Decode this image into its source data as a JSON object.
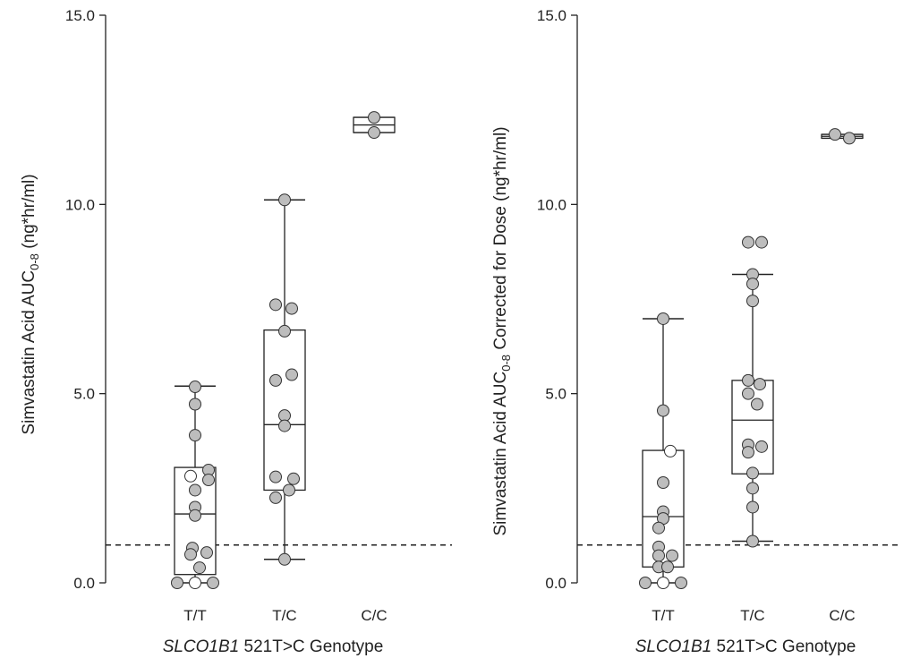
{
  "chart_data": [
    {
      "type": "box",
      "ylabel_main": "Simvastatin Acid AUC",
      "ylabel_sub": "0-8",
      "ylabel_rest": " (ng*hr/ml)",
      "xlabel_italic": "SLCO1B1",
      "xlabel_rest": " 521T>C Genotype",
      "ylim": [
        0,
        15
      ],
      "yticks": [
        "0.0",
        "5.0",
        "10.0",
        "15.0"
      ],
      "categories": [
        "T/T",
        "T/C",
        "C/C"
      ],
      "reference_line": 1.0,
      "boxes": [
        {
          "whisker_low": 0.0,
          "q1": 0.22,
          "median": 1.82,
          "q3": 3.05,
          "whisker_high": 5.2
        },
        {
          "whisker_low": 0.62,
          "q1": 2.45,
          "median": 4.18,
          "q3": 6.68,
          "whisker_high": 10.12
        },
        {
          "whisker_low": 11.9,
          "q1": 11.9,
          "median": 12.1,
          "q3": 12.3,
          "whisker_high": 12.3
        }
      ],
      "points": [
        [
          {
            "y": 5.18,
            "dx": 0.0,
            "open": false
          },
          {
            "y": 4.72,
            "dx": 0.0,
            "open": false
          },
          {
            "y": 3.9,
            "dx": 0.0,
            "open": false
          },
          {
            "y": 2.98,
            "dx": 0.15,
            "open": false
          },
          {
            "y": 2.82,
            "dx": -0.05,
            "open": true
          },
          {
            "y": 2.72,
            "dx": 0.15,
            "open": false
          },
          {
            "y": 2.45,
            "dx": 0.0,
            "open": false
          },
          {
            "y": 2.0,
            "dx": 0.0,
            "open": false
          },
          {
            "y": 1.78,
            "dx": 0.0,
            "open": false
          },
          {
            "y": 0.92,
            "dx": -0.03,
            "open": false
          },
          {
            "y": 0.8,
            "dx": 0.13,
            "open": false
          },
          {
            "y": 0.75,
            "dx": -0.05,
            "open": false
          },
          {
            "y": 0.4,
            "dx": 0.05,
            "open": false
          },
          {
            "y": 0.0,
            "dx": -0.2,
            "open": false
          },
          {
            "y": 0.0,
            "dx": 0.0,
            "open": true
          },
          {
            "y": 0.0,
            "dx": 0.2,
            "open": false
          }
        ],
        [
          {
            "y": 10.12,
            "dx": 0.0,
            "open": false
          },
          {
            "y": 7.35,
            "dx": -0.1,
            "open": false
          },
          {
            "y": 7.25,
            "dx": 0.08,
            "open": false
          },
          {
            "y": 6.65,
            "dx": 0.0,
            "open": false
          },
          {
            "y": 5.5,
            "dx": 0.08,
            "open": false
          },
          {
            "y": 5.35,
            "dx": -0.1,
            "open": false
          },
          {
            "y": 4.42,
            "dx": 0.0,
            "open": false
          },
          {
            "y": 4.15,
            "dx": 0.0,
            "open": false
          },
          {
            "y": 2.8,
            "dx": -0.1,
            "open": false
          },
          {
            "y": 2.75,
            "dx": 0.1,
            "open": false
          },
          {
            "y": 2.45,
            "dx": 0.05,
            "open": false
          },
          {
            "y": 2.25,
            "dx": -0.1,
            "open": false
          },
          {
            "y": 0.62,
            "dx": 0.0,
            "open": false
          }
        ],
        [
          {
            "y": 12.3,
            "dx": 0.0,
            "open": false
          },
          {
            "y": 11.9,
            "dx": 0.0,
            "open": false
          }
        ]
      ]
    },
    {
      "type": "box",
      "ylabel_main": "Simvastatin Acid AUC",
      "ylabel_sub": "0-8",
      "ylabel_rest": " Corrected for Dose (ng*hr/ml)",
      "xlabel_italic": "SLCO1B1",
      "xlabel_rest": " 521T>C Genotype",
      "ylim": [
        0,
        15
      ],
      "yticks": [
        "0.0",
        "5.0",
        "10.0",
        "15.0"
      ],
      "categories": [
        "T/T",
        "T/C",
        "C/C"
      ],
      "reference_line": 1.0,
      "boxes": [
        {
          "whisker_low": 0.0,
          "q1": 0.42,
          "median": 1.75,
          "q3": 3.5,
          "whisker_high": 6.98
        },
        {
          "whisker_low": 1.1,
          "q1": 2.88,
          "median": 4.3,
          "q3": 5.35,
          "whisker_high": 8.15
        },
        {
          "whisker_low": 11.75,
          "q1": 11.75,
          "median": 11.8,
          "q3": 11.85,
          "whisker_high": 11.85
        }
      ],
      "points": [
        [
          {
            "y": 6.98,
            "dx": 0.0,
            "open": false
          },
          {
            "y": 4.55,
            "dx": 0.0,
            "open": false
          },
          {
            "y": 3.48,
            "dx": 0.08,
            "open": true
          },
          {
            "y": 2.65,
            "dx": 0.0,
            "open": false
          },
          {
            "y": 1.88,
            "dx": 0.0,
            "open": false
          },
          {
            "y": 1.7,
            "dx": 0.0,
            "open": false
          },
          {
            "y": 1.45,
            "dx": -0.05,
            "open": false
          },
          {
            "y": 0.95,
            "dx": -0.05,
            "open": false
          },
          {
            "y": 0.72,
            "dx": -0.05,
            "open": false
          },
          {
            "y": 0.72,
            "dx": 0.1,
            "open": false
          },
          {
            "y": 0.42,
            "dx": -0.05,
            "open": false
          },
          {
            "y": 0.42,
            "dx": 0.05,
            "open": false
          },
          {
            "y": 0.0,
            "dx": -0.2,
            "open": false
          },
          {
            "y": 0.0,
            "dx": 0.0,
            "open": true
          },
          {
            "y": 0.0,
            "dx": 0.2,
            "open": false
          }
        ],
        [
          {
            "y": 9.0,
            "dx": -0.05,
            "open": false
          },
          {
            "y": 9.0,
            "dx": 0.1,
            "open": false
          },
          {
            "y": 8.15,
            "dx": 0.0,
            "open": false
          },
          {
            "y": 7.9,
            "dx": 0.0,
            "open": false
          },
          {
            "y": 7.45,
            "dx": 0.0,
            "open": false
          },
          {
            "y": 5.35,
            "dx": -0.05,
            "open": false
          },
          {
            "y": 5.25,
            "dx": 0.08,
            "open": false
          },
          {
            "y": 5.0,
            "dx": -0.05,
            "open": false
          },
          {
            "y": 4.72,
            "dx": 0.05,
            "open": false
          },
          {
            "y": 3.65,
            "dx": -0.05,
            "open": false
          },
          {
            "y": 3.6,
            "dx": 0.1,
            "open": false
          },
          {
            "y": 3.45,
            "dx": -0.05,
            "open": false
          },
          {
            "y": 2.9,
            "dx": 0.0,
            "open": false
          },
          {
            "y": 2.5,
            "dx": 0.0,
            "open": false
          },
          {
            "y": 2.0,
            "dx": 0.0,
            "open": false
          },
          {
            "y": 1.1,
            "dx": 0.0,
            "open": false
          }
        ],
        [
          {
            "y": 11.85,
            "dx": -0.08,
            "open": false
          },
          {
            "y": 11.75,
            "dx": 0.08,
            "open": false
          }
        ]
      ]
    }
  ]
}
